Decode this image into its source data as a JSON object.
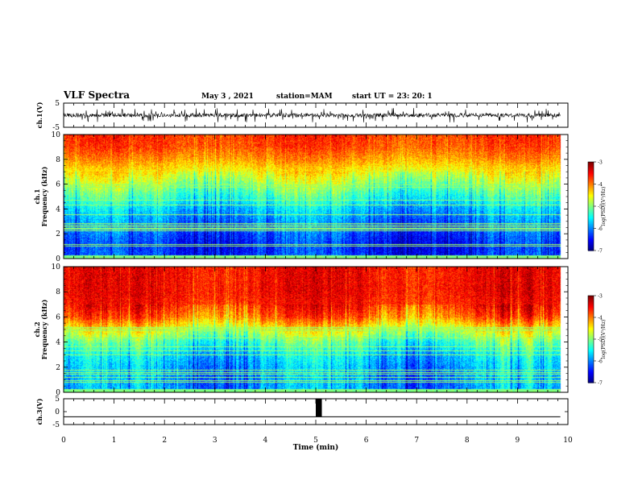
{
  "header": {
    "title": "VLF Spectra",
    "date": "May 3 , 2021",
    "station": "station=MAM",
    "start": "start  UT  =   23: 20: 1"
  },
  "chart_data": [
    {
      "type": "line",
      "panel": "ch1-waveform",
      "ylabel": "ch.1(V)",
      "ylim": [
        -5,
        5
      ],
      "yticks": [
        "5",
        "-5"
      ],
      "xlim": [
        0,
        10
      ],
      "description_values": {
        "baseline": 0,
        "approx_range": [
          -3,
          3
        ]
      }
    },
    {
      "type": "heatmap",
      "panel": "ch1-spectrogram",
      "ylabel": "ch.1 Frequency (kHz)",
      "ylabel_line1": "ch.1",
      "ylabel_line2": "Frequency  (kHz)",
      "ylim": [
        0,
        10
      ],
      "yticks": [
        "0",
        "2",
        "4",
        "6",
        "8",
        "10"
      ],
      "xlim": [
        0,
        9.85
      ],
      "colorbar": {
        "label": "log(PSD)(V²/Hz)",
        "ticks": [
          "-3",
          "-4",
          "-5",
          "-6",
          "-7"
        ],
        "range": [
          -7,
          -3
        ]
      },
      "band_levels_by_freq_khz": [
        {
          "f": 0,
          "v": -6.3
        },
        {
          "f": 1,
          "v": -6.4
        },
        {
          "f": 2,
          "v": -6.2
        },
        {
          "f": 3,
          "v": -6.0
        },
        {
          "f": 4,
          "v": -5.7
        },
        {
          "f": 5,
          "v": -5.3
        },
        {
          "f": 6,
          "v": -4.9
        },
        {
          "f": 7,
          "v": -4.5
        },
        {
          "f": 8,
          "v": -4.1
        },
        {
          "f": 9,
          "v": -3.8
        },
        {
          "f": 10,
          "v": -3.7
        }
      ]
    },
    {
      "type": "heatmap",
      "panel": "ch2-spectrogram",
      "ylabel": "ch.2 Frequency (kHz)",
      "ylabel_line1": "ch.2",
      "ylabel_line2": "Frequency  (kHz)",
      "ylim": [
        0,
        10
      ],
      "yticks": [
        "0",
        "2",
        "4",
        "6",
        "8",
        "10"
      ],
      "xlim": [
        0,
        9.85
      ],
      "colorbar": {
        "label": "log(PSD)(V²/Hz)",
        "ticks": [
          "-3",
          "-4",
          "-5",
          "-6",
          "-7"
        ],
        "range": [
          -7,
          -3
        ]
      },
      "band_levels_by_freq_khz": [
        {
          "f": 0,
          "v": -5.9
        },
        {
          "f": 1,
          "v": -5.9
        },
        {
          "f": 2,
          "v": -5.8
        },
        {
          "f": 3,
          "v": -5.6
        },
        {
          "f": 4,
          "v": -5.2
        },
        {
          "f": 5,
          "v": -4.6
        },
        {
          "f": 6,
          "v": -3.9
        },
        {
          "f": 7,
          "v": -3.6
        },
        {
          "f": 8,
          "v": -3.5
        },
        {
          "f": 9,
          "v": -3.5
        },
        {
          "f": 10,
          "v": -3.5
        }
      ]
    },
    {
      "type": "line",
      "panel": "ch3-waveform",
      "ylabel": "ch.3(V)",
      "ylim": [
        -5,
        5
      ],
      "yticks": [
        "5",
        "0",
        "-5"
      ],
      "xlabel": "Time  (min)",
      "xlim": [
        0,
        10
      ],
      "xticks": [
        "0",
        "1",
        "2",
        "3",
        "4",
        "5",
        "6",
        "7",
        "8",
        "9",
        "10"
      ],
      "baseline_v": -2,
      "pulse": {
        "x_start": 5.0,
        "x_end": 5.12,
        "y_low": -2,
        "y_high": 5
      }
    }
  ]
}
